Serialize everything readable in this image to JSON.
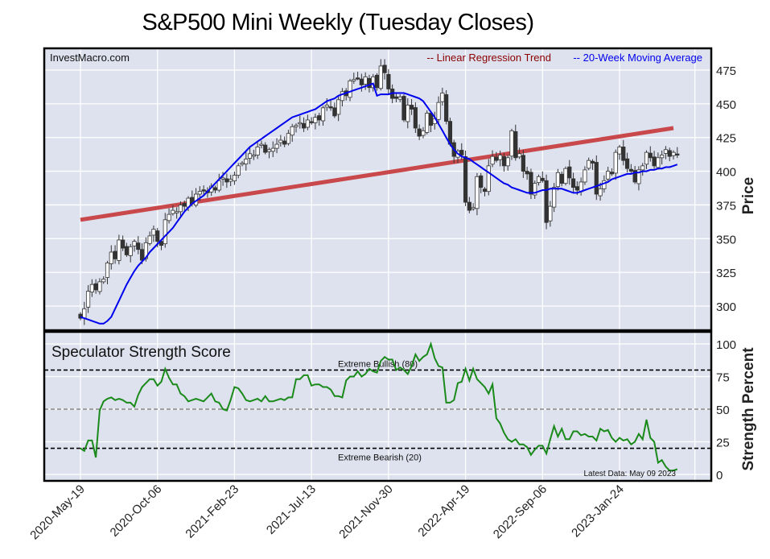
{
  "chart_data": [
    {
      "type": "candlestick",
      "title": "S&P500 Mini Weekly (Tuesday Closes)",
      "watermark": "InvestMacro.com",
      "ylabel": "Price",
      "ylim": [
        285,
        483
      ],
      "yticks": [
        300,
        325,
        350,
        375,
        400,
        425,
        450,
        475
      ],
      "xtick_labels": [
        "2020-May-19",
        "2020-Oct-06",
        "2021-Feb-23",
        "2021-Jul-13",
        "2021-Nov-30",
        "2022-Apr-19",
        "2022-Sep-06",
        "2023-Jan-24"
      ],
      "xtick_weeks": [
        0,
        20,
        40,
        60,
        80,
        100,
        120,
        140
      ],
      "x_week_range": [
        -6,
        160
      ],
      "grid": true,
      "legend": [
        {
          "label": "-- Linear Regression Trend",
          "color": "#8b0000"
        },
        {
          "label": "-- 20-Week Moving Average",
          "color": "#0000ee"
        }
      ],
      "legend_position": "top-right",
      "colors": {
        "up": "#ffffff",
        "down": "#333333",
        "trend": "#c8484b",
        "ma": "#0000ee",
        "panel_bg": "#dde2ee"
      },
      "trend": {
        "start_week": 0,
        "start_value": 364,
        "end_week": 154,
        "end_value": 432
      },
      "closes": [
        291,
        298,
        311,
        316,
        312,
        318,
        320,
        332,
        340,
        335,
        349,
        343,
        338,
        344,
        348,
        342,
        334,
        347,
        352,
        357,
        348,
        345,
        364,
        368,
        371,
        370,
        375,
        374,
        380,
        376,
        383,
        385,
        386,
        384,
        389,
        386,
        393,
        395,
        392,
        394,
        397,
        404,
        406,
        409,
        413,
        412,
        418,
        420,
        414,
        416,
        417,
        420,
        423,
        420,
        428,
        433,
        434,
        436,
        432,
        438,
        436,
        440,
        438,
        447,
        449,
        447,
        441,
        453,
        459,
        456,
        467,
        468,
        469,
        464,
        470,
        462,
        470,
        462,
        478,
        473,
        461,
        454,
        454,
        455,
        438,
        449,
        446,
        432,
        426,
        430,
        443,
        434,
        439,
        451,
        458,
        437,
        420,
        411,
        415,
        412,
        377,
        371,
        373,
        396,
        388,
        385,
        404,
        411,
        408,
        412,
        404,
        410,
        430,
        410,
        413,
        400,
        398,
        383,
        391,
        396,
        393,
        362,
        374,
        388,
        399,
        391,
        402,
        395,
        388,
        386,
        392,
        401,
        408,
        406,
        383,
        387,
        393,
        400,
        398,
        414,
        418,
        408,
        402,
        400,
        392,
        401,
        404,
        414,
        410,
        404,
        410,
        412,
        416,
        411,
        414,
        412
      ],
      "ma20": [
        292,
        291,
        290,
        289,
        288,
        287,
        287,
        289,
        292,
        298,
        304,
        310,
        316,
        321,
        326,
        330,
        333,
        336,
        340,
        343,
        346,
        349,
        352,
        355,
        358,
        362,
        366,
        370,
        373,
        376,
        378,
        380,
        382,
        385,
        388,
        391,
        394,
        397,
        400,
        403,
        406,
        409,
        412,
        415,
        418,
        420,
        422,
        424,
        426,
        428,
        430,
        432,
        434,
        436,
        438,
        440,
        441,
        442,
        443,
        444,
        445,
        446,
        448,
        450,
        452,
        453,
        454,
        456,
        457,
        458,
        459,
        460,
        461,
        462,
        463,
        464,
        465,
        456,
        457,
        457,
        457,
        458,
        458,
        458,
        458,
        457,
        456,
        455,
        454,
        452,
        448,
        444,
        440,
        435,
        430,
        425,
        420,
        416,
        413,
        411,
        410,
        409,
        407,
        405,
        403,
        401,
        399,
        397,
        395,
        393,
        391,
        390,
        388,
        387,
        386,
        385,
        384,
        384,
        384,
        385,
        386,
        386,
        387,
        387,
        387,
        387,
        386,
        385,
        384,
        384,
        385,
        386,
        387,
        388,
        389,
        390,
        391,
        392,
        394,
        395,
        396,
        397,
        398,
        398,
        399,
        399,
        400,
        400,
        401,
        401,
        402,
        402,
        403,
        403,
        404,
        405
      ]
    },
    {
      "type": "line",
      "title": "Speculator Strength Score",
      "ylabel": "Strength Percent",
      "ylim": [
        -2,
        105
      ],
      "yticks": [
        0,
        25,
        50,
        75,
        100
      ],
      "reference_lines": [
        {
          "value": 80,
          "label": "Extreme Bullish (80)",
          "color": "#000000"
        },
        {
          "value": 50,
          "label": "",
          "color": "#888888"
        },
        {
          "value": 20,
          "label": "Extreme Bearish (20)",
          "color": "#000000"
        }
      ],
      "annotation": "Latest Data: May 09 2023",
      "color": "#1a8a1a",
      "values": [
        20,
        18,
        26,
        26,
        13,
        49,
        56,
        58,
        59,
        57,
        58,
        57,
        55,
        55,
        52,
        61,
        67,
        70,
        73,
        73,
        68,
        71,
        81,
        74,
        69,
        69,
        62,
        60,
        56,
        57,
        58,
        57,
        56,
        59,
        62,
        56,
        55,
        50,
        49,
        57,
        67,
        66,
        62,
        57,
        56,
        57,
        58,
        56,
        60,
        56,
        56,
        57,
        58,
        57,
        59,
        59,
        73,
        73,
        76,
        76,
        68,
        69,
        69,
        67,
        67,
        65,
        60,
        60,
        59,
        72,
        75,
        75,
        79,
        75,
        77,
        81,
        79,
        78,
        87,
        90,
        88,
        88,
        80,
        82,
        80,
        77,
        83,
        92,
        87,
        90,
        92,
        100,
        89,
        83,
        82,
        55,
        55,
        57,
        70,
        71,
        81,
        72,
        81,
        73,
        70,
        67,
        62,
        69,
        43,
        39,
        32,
        27,
        25,
        27,
        23,
        23,
        21,
        15,
        19,
        22,
        22,
        16,
        27,
        37,
        29,
        35,
        27,
        27,
        33,
        33,
        30,
        31,
        29,
        29,
        26,
        35,
        33,
        34,
        28,
        25,
        28,
        26,
        27,
        23,
        25,
        31,
        27,
        42,
        28,
        25,
        9,
        11,
        6,
        3,
        3,
        4
      ]
    }
  ]
}
